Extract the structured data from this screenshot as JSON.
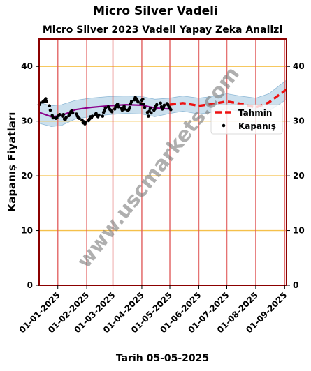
{
  "suptitle": "Micro Silver Vadeli",
  "bottom_label": "Tarih 05-05-2025",
  "watermark": "www.uscmarkets.com",
  "colors": {
    "frame": "#8b0000",
    "vline": "#e05a5a",
    "hline": "#f5c04a",
    "band": "#a9cce3",
    "fit_line": "#8b008b",
    "forecast_line": "#ee1111",
    "points": "#000000"
  },
  "chart_data": {
    "type": "line",
    "title": "Micro Silver 2023 Vadeli Yapay Zeka Analizi",
    "xlabel": "",
    "ylabel": "Kapanış Fiyatları",
    "ylim": [
      0,
      45
    ],
    "xlim": [
      "2024-12-12",
      "2025-09-03"
    ],
    "yticks": [
      0,
      10,
      20,
      30,
      40
    ],
    "xticks": [
      "01-01-2025",
      "01-02-2025",
      "01-03-2025",
      "01-04-2025",
      "01-05-2025",
      "01-06-2025",
      "01-07-2025",
      "01-08-2025",
      "01-09-2025"
    ],
    "vlines": [
      "2025-01-01",
      "2025-02-01",
      "2025-03-01",
      "2025-04-01",
      "2025-05-01",
      "2025-06-01",
      "2025-07-01",
      "2025-08-01",
      "2025-09-01"
    ],
    "hlines": [
      10,
      20,
      30,
      40
    ],
    "grid": false,
    "legend_position": "right",
    "legend": [
      "Tahmin",
      "Kapanış"
    ],
    "series": [
      {
        "name": "Kapanış",
        "kind": "scatter",
        "x": [
          "2024-12-12",
          "2024-12-13",
          "2024-12-16",
          "2024-12-17",
          "2024-12-18",
          "2024-12-19",
          "2024-12-20",
          "2024-12-23",
          "2024-12-24",
          "2024-12-26",
          "2024-12-27",
          "2024-12-30",
          "2024-12-31",
          "2025-01-02",
          "2025-01-03",
          "2025-01-06",
          "2025-01-07",
          "2025-01-08",
          "2025-01-09",
          "2025-01-10",
          "2025-01-13",
          "2025-01-14",
          "2025-01-15",
          "2025-01-16",
          "2025-01-17",
          "2025-01-21",
          "2025-01-22",
          "2025-01-23",
          "2025-01-24",
          "2025-01-27",
          "2025-01-28",
          "2025-01-29",
          "2025-01-30",
          "2025-01-31",
          "2025-02-03",
          "2025-02-04",
          "2025-02-05",
          "2025-02-06",
          "2025-02-07",
          "2025-02-10",
          "2025-02-11",
          "2025-02-12",
          "2025-02-13",
          "2025-02-14",
          "2025-02-18",
          "2025-02-19",
          "2025-02-20",
          "2025-02-21",
          "2025-02-24",
          "2025-02-25",
          "2025-02-26",
          "2025-02-27",
          "2025-02-28",
          "2025-03-03",
          "2025-03-04",
          "2025-03-05",
          "2025-03-06",
          "2025-03-07",
          "2025-03-10",
          "2025-03-11",
          "2025-03-12",
          "2025-03-13",
          "2025-03-14",
          "2025-03-17",
          "2025-03-18",
          "2025-03-19",
          "2025-03-20",
          "2025-03-21",
          "2025-03-24",
          "2025-03-25",
          "2025-03-26",
          "2025-03-27",
          "2025-03-28",
          "2025-03-31",
          "2025-04-01",
          "2025-04-02",
          "2025-04-03",
          "2025-04-04",
          "2025-04-07",
          "2025-04-08",
          "2025-04-09",
          "2025-04-10",
          "2025-04-11",
          "2025-04-14",
          "2025-04-15",
          "2025-04-16",
          "2025-04-17",
          "2025-04-21",
          "2025-04-22",
          "2025-04-23",
          "2025-04-24",
          "2025-04-25",
          "2025-04-28",
          "2025-04-29",
          "2025-04-30",
          "2025-05-01",
          "2025-05-02"
        ],
        "values": [
          33.0,
          33.3,
          33.5,
          33.6,
          33.8,
          34.1,
          33.6,
          32.8,
          32.0,
          31.0,
          30.6,
          30.5,
          30.6,
          31.0,
          31.2,
          30.9,
          31.2,
          30.4,
          30.3,
          30.7,
          31.0,
          31.3,
          31.7,
          31.9,
          31.5,
          31.3,
          30.9,
          30.6,
          30.5,
          30.2,
          29.7,
          29.9,
          29.5,
          29.8,
          30.1,
          30.4,
          30.8,
          30.6,
          30.9,
          31.2,
          31.4,
          31.0,
          30.8,
          31.1,
          30.9,
          31.6,
          32.0,
          32.4,
          32.6,
          32.3,
          32.1,
          31.9,
          31.7,
          32.2,
          32.6,
          32.9,
          33.1,
          32.6,
          32.3,
          32.0,
          32.4,
          32.7,
          32.2,
          32.0,
          32.1,
          32.5,
          33.2,
          33.6,
          33.9,
          34.3,
          34.1,
          33.8,
          33.5,
          33.2,
          33.8,
          34.0,
          33.1,
          32.5,
          31.6,
          30.9,
          31.8,
          32.3,
          31.5,
          32.0,
          32.2,
          32.7,
          33.0,
          33.3,
          32.6,
          32.2,
          32.5,
          32.9,
          33.2,
          33.0,
          32.6,
          32.4,
          32.1
        ]
      },
      {
        "name": "",
        "kind": "fit",
        "x": [
          "2024-12-12",
          "2024-12-25",
          "2025-01-05",
          "2025-01-20",
          "2025-02-05",
          "2025-02-25",
          "2025-03-15",
          "2025-04-01",
          "2025-04-15",
          "2025-05-01"
        ],
        "values": [
          31.6,
          30.8,
          31.0,
          32.1,
          32.5,
          32.8,
          33.0,
          32.9,
          32.4,
          32.2
        ]
      },
      {
        "name": "Tahmin",
        "kind": "forecast",
        "x": [
          "2025-05-01",
          "2025-05-15",
          "2025-06-01",
          "2025-06-15",
          "2025-07-01",
          "2025-07-15",
          "2025-08-01",
          "2025-08-15",
          "2025-09-03"
        ],
        "values": [
          33.0,
          33.3,
          32.8,
          33.1,
          33.6,
          33.2,
          32.5,
          33.4,
          35.8
        ]
      }
    ],
    "band": {
      "x": [
        "2024-12-12",
        "2024-12-25",
        "2025-01-05",
        "2025-01-20",
        "2025-02-05",
        "2025-02-25",
        "2025-03-15",
        "2025-04-01",
        "2025-04-15",
        "2025-05-01",
        "2025-05-15",
        "2025-06-01",
        "2025-06-15",
        "2025-07-01",
        "2025-07-15",
        "2025-08-01",
        "2025-08-15",
        "2025-09-03"
      ],
      "upper": [
        33.4,
        32.8,
        33.0,
        33.8,
        34.2,
        34.5,
        34.6,
        34.5,
        34.0,
        34.2,
        34.6,
        34.2,
        34.5,
        35.0,
        34.6,
        34.2,
        35.0,
        37.5
      ],
      "lower": [
        29.6,
        29.0,
        29.2,
        30.4,
        30.8,
        31.2,
        31.4,
        31.3,
        30.8,
        31.4,
        31.8,
        31.3,
        31.6,
        32.2,
        31.8,
        31.0,
        31.8,
        34.0
      ]
    }
  }
}
